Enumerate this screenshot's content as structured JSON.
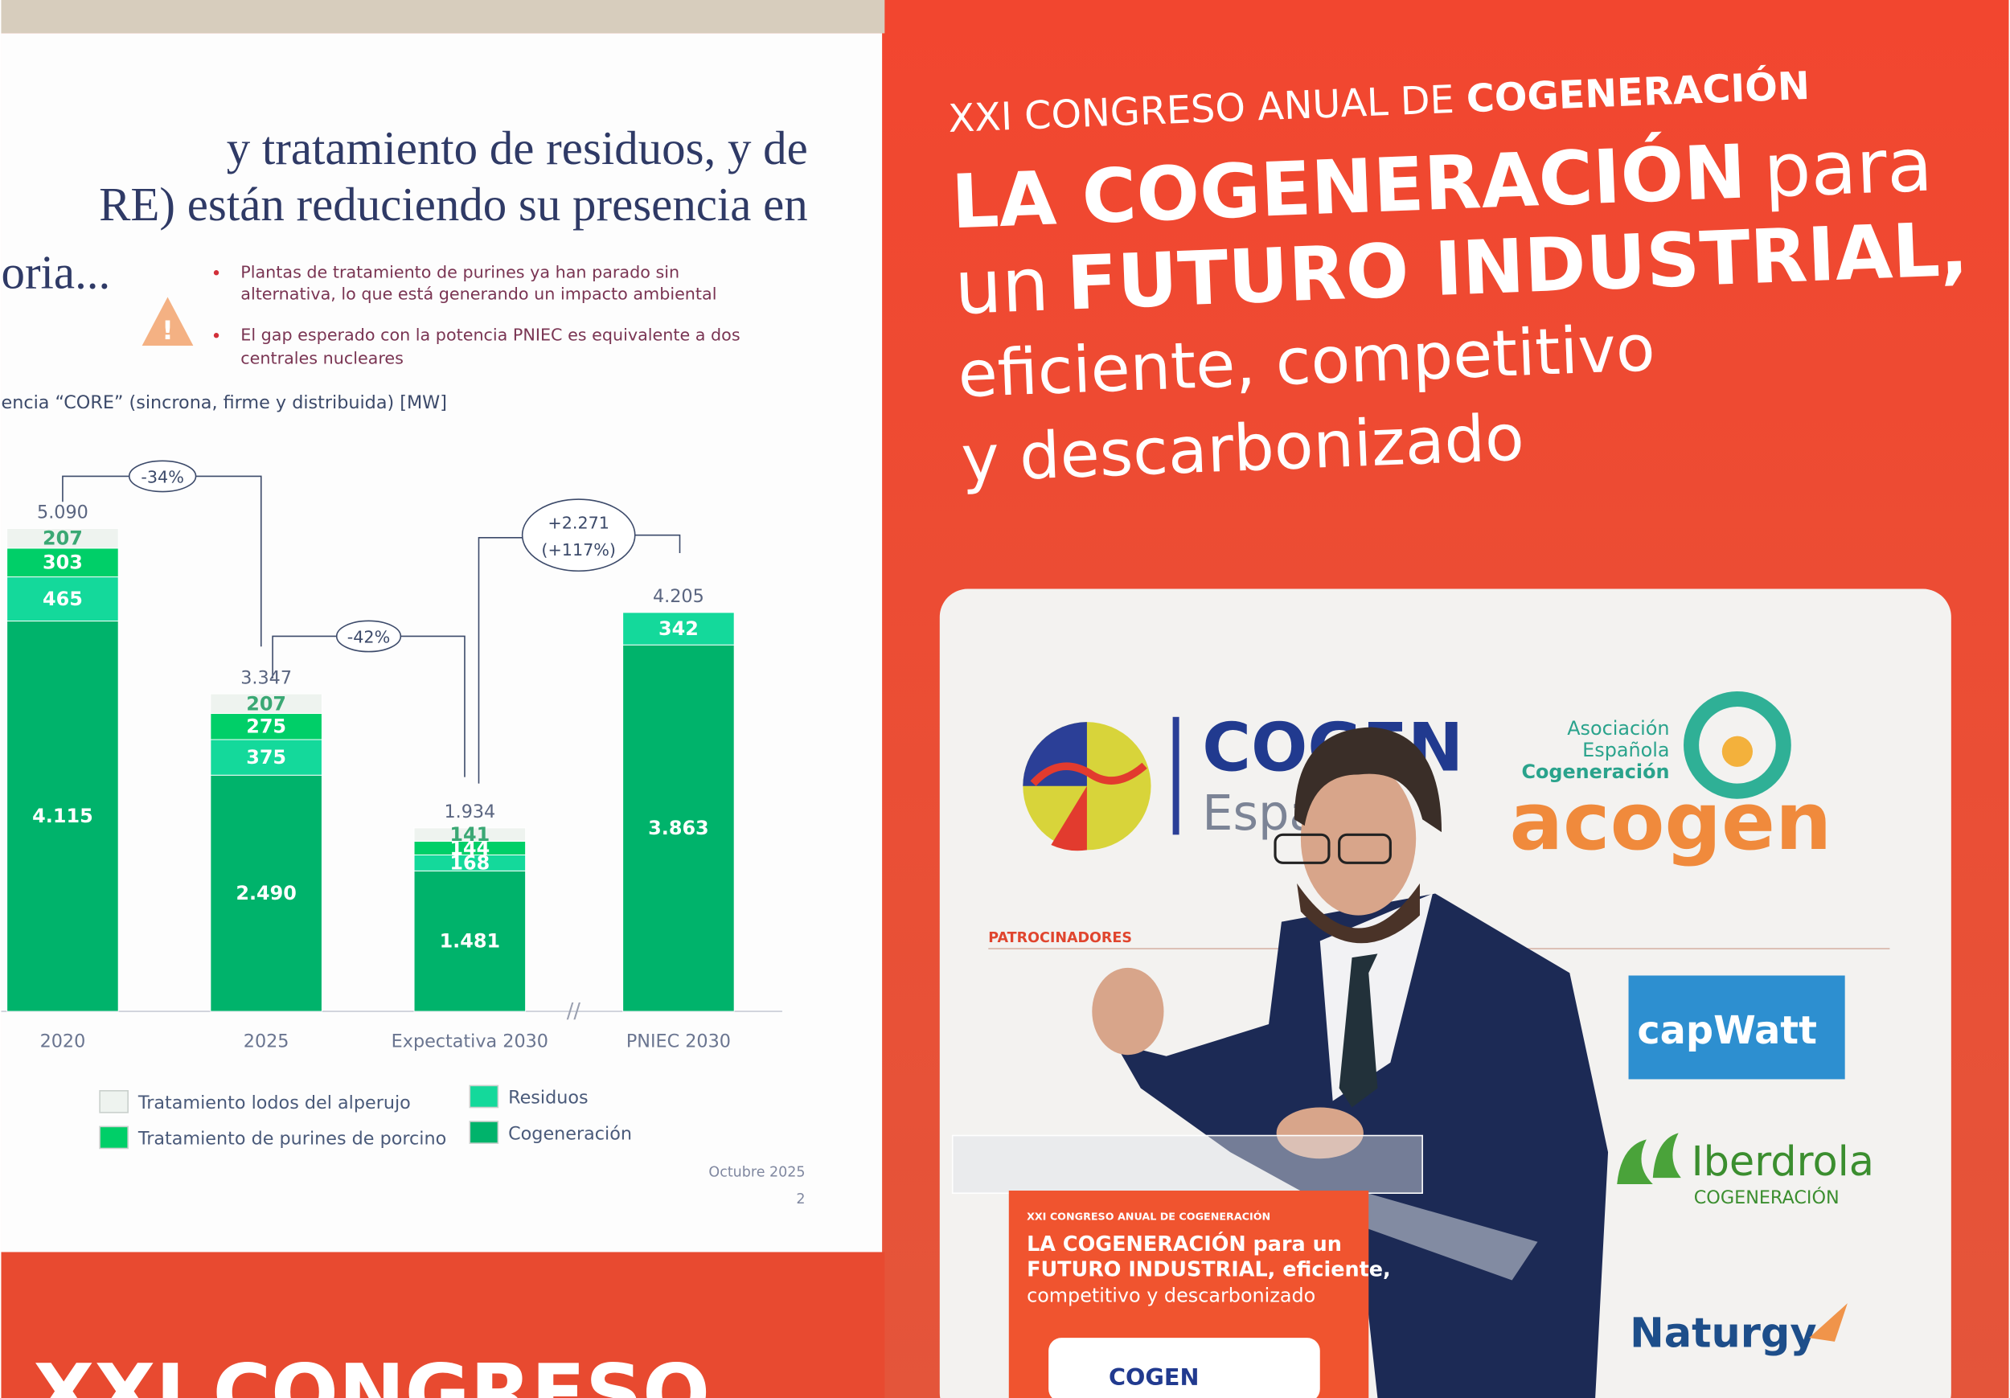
{
  "slide": {
    "heading": [
      "y tratamiento de residuos, y de",
      "RE) están reduciendo su presencia en",
      "oria..."
    ],
    "bullets": [
      [
        "Plantas de tratamiento de purines ya han parado sin",
        "alternativa, lo que está generando un impacto ambiental"
      ],
      [
        "El gap esperado con la potencia PNIEC es equivalente a dos",
        "centrales nucleares"
      ]
    ],
    "footer_date": "Octubre 2025",
    "page_number": "2"
  },
  "chart_data": {
    "type": "stacked-bar",
    "subtitle": "encia “CORE” (sincrona, firme y distribuida) [MW]",
    "categories": [
      "2020",
      "2025",
      "Expectativa 2030",
      "PNIEC 2030"
    ],
    "series": [
      {
        "name": "Cogeneración",
        "color": "#00b36b",
        "label_color": "#ffffff",
        "values": [
          4115,
          2490,
          1481,
          3863
        ],
        "value_labels": [
          "4.115",
          "2.490",
          "1.481",
          "3.863"
        ]
      },
      {
        "name": "Residuos",
        "color": "#14d99b",
        "label_color": "#ffffff",
        "values": [
          465,
          375,
          168,
          342
        ]
      },
      {
        "name": "Tratamiento de purines de porcino",
        "color": "#00cf68",
        "label_color": "#ffffff",
        "values": [
          303,
          275,
          144,
          null
        ]
      },
      {
        "name": "Tratamiento lodos del alperujo",
        "color": "#eef3ef",
        "label_color": "#3aa874",
        "values": [
          207,
          207,
          141,
          null
        ]
      }
    ],
    "totals": {
      "values": [
        5090,
        3347,
        1934,
        4205
      ],
      "value_labels": [
        "5.090",
        "3.347",
        "1.934",
        "4.205"
      ]
    },
    "annotations": [
      "-34%",
      "-42%",
      "+2.271",
      "(+117%)"
    ]
  },
  "banner": {
    "kicker": [
      {
        "text": "XXI CONGRESO ANUAL DE",
        "bold": false
      },
      {
        "text": "COGENERACIÓN",
        "bold": true
      }
    ],
    "headline": [
      [
        {
          "text": "LA COGENERACIÓN",
          "bold": true
        },
        {
          "text": "para",
          "bold": false
        }
      ],
      [
        {
          "text": "un",
          "bold": false
        },
        {
          "text": "FUTURO INDUSTRIAL,",
          "bold": true
        }
      ],
      [
        {
          "text": "eficiente, competitivo",
          "bold": false
        }
      ],
      [
        {
          "text": "y descarbonizado",
          "bold": false
        }
      ]
    ],
    "bottom": "XXI CONGRESO"
  },
  "logos": {
    "cogen": "COGEN",
    "cogen_sub": "España",
    "acogen_lines": [
      "Asociación",
      "Española",
      "Cogeneración"
    ],
    "acogen": "acogen",
    "sponsors_title": "PATROCINADORES",
    "capwatt": "capWatt",
    "iberdrola": "Iberdrola",
    "iberdrola_sub": "COGENERACIÓN",
    "naturgy": "Naturgy"
  },
  "podium": {
    "kicker": "XXI CONGRESO ANUAL DE COGENERACIÓN",
    "lines": [
      "LA COGENERACIÓN para un",
      "FUTURO INDUSTRIAL, eficiente,",
      "competitivo y descarbonizado"
    ],
    "logo": "COGEN"
  }
}
